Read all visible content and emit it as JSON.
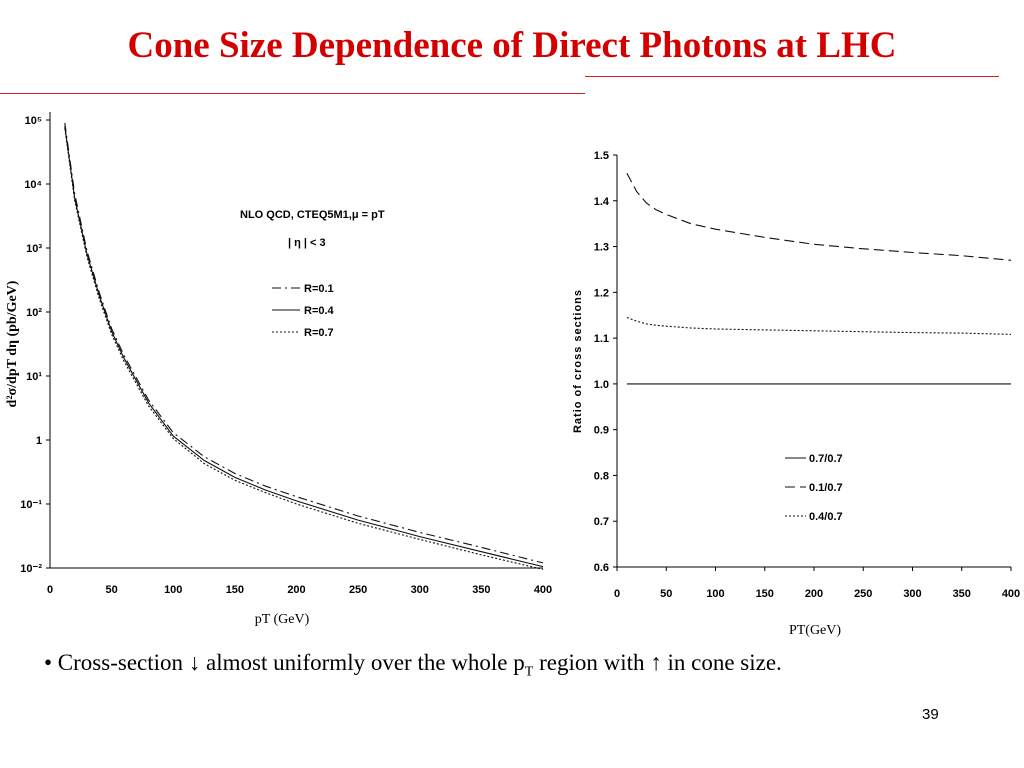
{
  "slide": {
    "title": "Cone Size Dependence of Direct Photons at LHC",
    "bullet": {
      "prefix": "• Cross-section ",
      "down_arrow": "↓",
      "middle": " almost uniformly over the whole p",
      "sub": "T",
      "suffix_a": " region with ",
      "up_arrow": "↑",
      "suffix_b": " in cone size."
    },
    "page_number": "39",
    "colors": {
      "title": "#d40000",
      "rule": "#d22020"
    }
  },
  "chart_data": [
    {
      "type": "line",
      "title": "",
      "annotation": [
        "NLO QCD, CTEQ5M1,μ = pT",
        "| η | < 3"
      ],
      "xlabel": "pT (GeV)",
      "ylabel": "d²σ/dpT dη (pb/GeV)",
      "xlim": [
        0,
        400
      ],
      "ylim": [
        0.01,
        100000
      ],
      "yscale": "log",
      "x_ticks": [
        "0",
        "50",
        "100",
        "150",
        "200",
        "250",
        "300",
        "350",
        "400"
      ],
      "y_ticks": [
        "10⁻²",
        "10⁻¹",
        "1",
        "10¹",
        "10²",
        "10³",
        "10⁴",
        "10⁵"
      ],
      "legend_position": "middle",
      "x": [
        12,
        20,
        30,
        40,
        50,
        60,
        80,
        100,
        125,
        150,
        175,
        200,
        250,
        300,
        350,
        400
      ],
      "series": [
        {
          "name": "R=0.1",
          "dash": "dash-dot",
          "values": [
            90000,
            7000,
            900,
            200,
            55,
            21,
            4.2,
            1.3,
            0.55,
            0.3,
            0.19,
            0.13,
            0.065,
            0.036,
            0.021,
            0.012
          ]
        },
        {
          "name": "R=0.4",
          "dash": "solid",
          "values": [
            80000,
            6000,
            800,
            180,
            50,
            19,
            3.8,
            1.15,
            0.48,
            0.26,
            0.165,
            0.112,
            0.056,
            0.031,
            0.018,
            0.0105
          ]
        },
        {
          "name": "R=0.7",
          "dash": "dotted",
          "values": [
            74000,
            5500,
            720,
            160,
            45,
            17,
            3.4,
            1.05,
            0.43,
            0.235,
            0.15,
            0.1,
            0.05,
            0.028,
            0.016,
            0.0095
          ]
        }
      ]
    },
    {
      "type": "line",
      "title": "",
      "xlabel": "PT(GeV)",
      "ylabel": "Ratio of cross sections",
      "xlim": [
        0,
        400
      ],
      "ylim": [
        0.6,
        1.5
      ],
      "x_ticks": [
        "0",
        "50",
        "100",
        "150",
        "200",
        "250",
        "300",
        "350",
        "400"
      ],
      "y_ticks": [
        "0.6",
        "0.7",
        "0.8",
        "0.9",
        "1.0",
        "1.1",
        "1.2",
        "1.3",
        "1.4",
        "1.5"
      ],
      "legend_position": "lower-right",
      "x": [
        10,
        20,
        30,
        40,
        50,
        75,
        100,
        150,
        200,
        250,
        300,
        350,
        400
      ],
      "series": [
        {
          "name": "0.7/0.7",
          "dash": "solid",
          "values": [
            1.0,
            1.0,
            1.0,
            1.0,
            1.0,
            1.0,
            1.0,
            1.0,
            1.0,
            1.0,
            1.0,
            1.0,
            1.0
          ]
        },
        {
          "name": "0.1/0.7",
          "dash": "long-dash",
          "values": [
            1.46,
            1.42,
            1.395,
            1.38,
            1.37,
            1.35,
            1.338,
            1.32,
            1.305,
            1.295,
            1.287,
            1.28,
            1.27
          ]
        },
        {
          "name": "0.4/0.7",
          "dash": "dotted",
          "values": [
            1.145,
            1.137,
            1.131,
            1.128,
            1.126,
            1.122,
            1.12,
            1.118,
            1.116,
            1.114,
            1.112,
            1.111,
            1.108
          ]
        }
      ]
    }
  ]
}
